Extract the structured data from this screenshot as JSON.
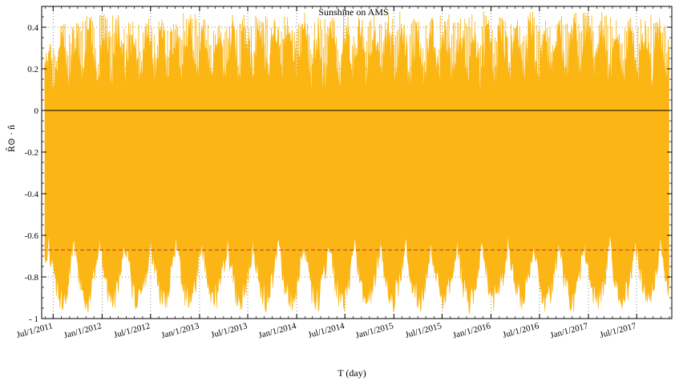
{
  "chart_data": {
    "type": "area",
    "title": "Sunshine on AMS",
    "xlabel": "T (day)",
    "ylabel": "R̂⊙ · n̂",
    "ylim": [
      -1,
      0.5
    ],
    "y_ticks": [
      -1,
      -0.8,
      -0.6,
      -0.4,
      -0.2,
      0,
      0.2,
      0.4
    ],
    "y_tick_labels": [
      "- 1",
      "-0.8",
      "-0.6",
      "-0.4",
      "-0.2",
      "0",
      "0.2",
      "0.4"
    ],
    "x_tick_labels": [
      "Jul/1/2011",
      "Jan/1/2012",
      "Jul/1/2012",
      "Jan/1/2013",
      "Jul/1/2013",
      "Jan/1/2014",
      "Jul/1/2014",
      "Jan/1/2015",
      "Jul/1/2015",
      "Jan/1/2016",
      "Jul/1/2016",
      "Jan/1/2017",
      "Jul/1/2017"
    ],
    "x_range": [
      "2011-05-19",
      "2017-11-10"
    ],
    "grid": true,
    "series": [
      {
        "color": "#fbb615",
        "style": "dense oscillating fill, upper envelope up to about 0.48, lower envelope down to about -0.98",
        "envelope": {
          "x": [
            "2011-06-01",
            "2011-08-01",
            "2011-10-01",
            "2011-12-01",
            "2012-02-01",
            "2012-04-01",
            "2012-06-01",
            "2012-08-01",
            "2012-10-01",
            "2012-12-01",
            "2013-02-01",
            "2013-04-01",
            "2013-06-01",
            "2013-08-01",
            "2013-10-01",
            "2013-12-01",
            "2014-02-01",
            "2014-04-01",
            "2014-06-01",
            "2014-08-01",
            "2014-10-01",
            "2014-12-01",
            "2015-02-01",
            "2015-04-01",
            "2015-06-01",
            "2015-08-01",
            "2015-10-01",
            "2015-12-01",
            "2016-02-01",
            "2016-04-01",
            "2016-06-01",
            "2016-08-01",
            "2016-10-01",
            "2016-12-01",
            "2017-02-01",
            "2017-04-01",
            "2017-06-01",
            "2017-08-01",
            "2017-10-01"
          ],
          "max": [
            0.3,
            0.42,
            0.45,
            0.46,
            0.47,
            0.45,
            0.44,
            0.46,
            0.47,
            0.48,
            0.44,
            0.45,
            0.47,
            0.47,
            0.45,
            0.48,
            0.48,
            0.46,
            0.45,
            0.47,
            0.46,
            0.47,
            0.48,
            0.43,
            0.46,
            0.47,
            0.45,
            0.49,
            0.46,
            0.45,
            0.48,
            0.44,
            0.47,
            0.48,
            0.49,
            0.45,
            0.46,
            0.47,
            0.46
          ],
          "min": [
            -0.97,
            -0.98,
            -0.97,
            -0.98,
            -0.97,
            -0.98,
            -0.98,
            -0.97,
            -0.97,
            -0.98,
            -0.96,
            -0.97,
            -0.98,
            -0.98,
            -0.97,
            -0.98,
            -0.97,
            -0.98,
            -0.98,
            -0.97,
            -0.98,
            -0.98,
            -0.96,
            -0.98,
            -0.98,
            -0.97,
            -0.98,
            -0.98,
            -0.97,
            -0.97,
            -0.98,
            -0.97,
            -0.98,
            -0.98,
            -0.97,
            -0.98,
            -0.98,
            -0.97,
            -0.97
          ]
        }
      }
    ],
    "reference_lines": [
      {
        "y": 0,
        "color": "#000000",
        "style": "solid"
      },
      {
        "y": -0.67,
        "color": "#c0392b",
        "style": "dashed"
      }
    ]
  }
}
